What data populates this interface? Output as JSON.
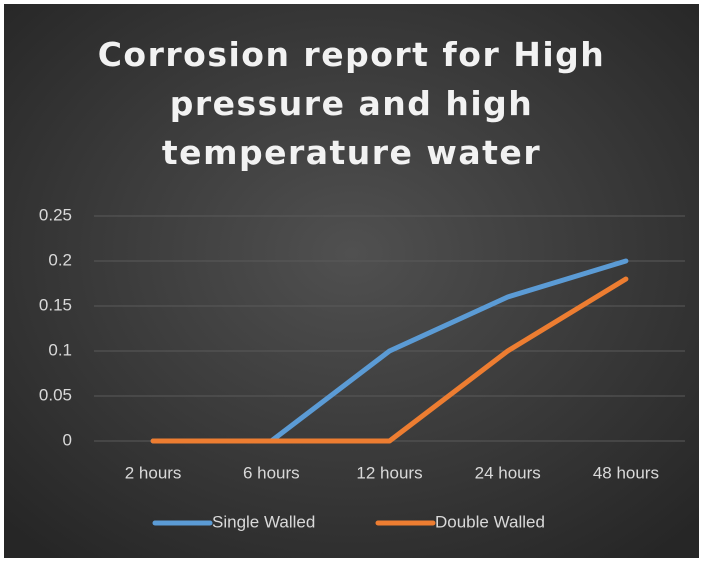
{
  "chart_data": {
    "type": "line",
    "title": "Corrosion report for High pressure and high temperature water",
    "categories": [
      "2 hours",
      "6 hours",
      "12 hours",
      "24 hours",
      "48 hours"
    ],
    "series": [
      {
        "name": "Single Walled",
        "color": "#5b9bd5",
        "values": [
          0,
          0,
          0.1,
          0.16,
          0.2
        ]
      },
      {
        "name": "Double Walled",
        "color": "#ed7d31",
        "values": [
          0,
          0,
          0,
          0.1,
          0.18
        ]
      }
    ],
    "ylim": [
      0,
      0.25
    ],
    "yticks": [
      0,
      0.05,
      0.1,
      0.15,
      0.2,
      0.25
    ],
    "grid": true,
    "legend": "bottom"
  }
}
